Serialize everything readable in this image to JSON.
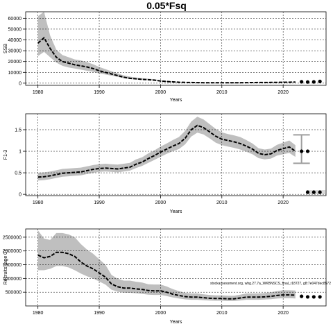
{
  "title": "0.05*Fsq",
  "watermark": "stockassessment.org, whg.27.7a_WKBNSCS_final_r18727, g8:7e047dec8572",
  "colors": {
    "band": "#bfbfbf",
    "line": "#000000",
    "grid": "#000000",
    "forecast_band": "#d9d9d9",
    "error_bar": "#9e9e9e"
  },
  "chart_data": [
    {
      "type": "line",
      "name": "ssb",
      "xlabel": "Years",
      "ylabel": "SSB",
      "xlim": [
        1978,
        2027
      ],
      "ylim": [
        -2000,
        66000
      ],
      "x_ticks": [
        1980,
        1990,
        2000,
        2010,
        2020
      ],
      "y_ticks": [
        0,
        10000,
        20000,
        30000,
        40000,
        50000,
        60000
      ],
      "grid": true,
      "x": [
        1980,
        1981,
        1982,
        1983,
        1984,
        1985,
        1986,
        1987,
        1988,
        1989,
        1990,
        1991,
        1992,
        1993,
        1994,
        1995,
        1996,
        1997,
        1998,
        1999,
        2000,
        2001,
        2002,
        2003,
        2004,
        2005,
        2006,
        2007,
        2008,
        2009,
        2010,
        2011,
        2012,
        2013,
        2014,
        2015,
        2016,
        2017,
        2018,
        2019,
        2020,
        2021,
        2022
      ],
      "estimate": [
        37000,
        42000,
        32000,
        24000,
        20000,
        18500,
        17000,
        16000,
        15000,
        13500,
        11500,
        10000,
        8500,
        7000,
        5500,
        4500,
        4000,
        3500,
        3200,
        2800,
        2000,
        1500,
        1200,
        900,
        700,
        600,
        500,
        450,
        400,
        380,
        370,
        380,
        400,
        450,
        500,
        550,
        600,
        650,
        700,
        780,
        850,
        900,
        1000
      ],
      "lower": [
        25000,
        29000,
        24000,
        19000,
        16000,
        14500,
        13500,
        12500,
        11500,
        10500,
        9000,
        8000,
        7000,
        5800,
        4600,
        3800,
        3400,
        3000,
        2700,
        2300,
        1600,
        1200,
        950,
        700,
        540,
        460,
        380,
        340,
        300,
        280,
        270,
        280,
        300,
        340,
        380,
        420,
        460,
        500,
        540,
        600,
        660,
        700,
        780
      ],
      "upper": [
        62000,
        66000,
        44000,
        31000,
        26000,
        24000,
        22000,
        21000,
        19500,
        17500,
        15000,
        13000,
        11000,
        9000,
        7200,
        6000,
        5200,
        4600,
        4100,
        3600,
        2700,
        2050,
        1650,
        1250,
        960,
        830,
        690,
        620,
        550,
        520,
        510,
        520,
        550,
        620,
        690,
        760,
        830,
        900,
        970,
        1080,
        1180,
        1250,
        1400
      ],
      "forecast": {
        "x": [
          2023,
          2024,
          2025,
          2026
        ],
        "values": [
          1300,
          1100,
          1200,
          1600
        ]
      }
    },
    {
      "type": "line",
      "name": "fishing-mortality",
      "xlabel": "Years",
      "ylabel": "F1-3",
      "xlim": [
        1978,
        2027
      ],
      "ylim": [
        -0.03,
        1.87
      ],
      "x_ticks": [
        1980,
        1990,
        2000,
        2010,
        2020
      ],
      "y_ticks": [
        0.0,
        0.5,
        1.0,
        1.5
      ],
      "grid": true,
      "x": [
        1980,
        1981,
        1982,
        1983,
        1984,
        1985,
        1986,
        1987,
        1988,
        1989,
        1990,
        1991,
        1992,
        1993,
        1994,
        1995,
        1996,
        1997,
        1998,
        1999,
        2000,
        2001,
        2002,
        2003,
        2004,
        2005,
        2006,
        2007,
        2008,
        2009,
        2010,
        2011,
        2012,
        2013,
        2014,
        2015,
        2016,
        2017,
        2018,
        2019,
        2020,
        2021,
        2022
      ],
      "estimate": [
        0.4,
        0.41,
        0.43,
        0.46,
        0.49,
        0.5,
        0.51,
        0.52,
        0.55,
        0.58,
        0.6,
        0.61,
        0.6,
        0.59,
        0.61,
        0.63,
        0.7,
        0.75,
        0.83,
        0.9,
        0.98,
        1.05,
        1.12,
        1.18,
        1.3,
        1.5,
        1.6,
        1.55,
        1.45,
        1.35,
        1.28,
        1.25,
        1.22,
        1.18,
        1.12,
        1.05,
        0.95,
        0.92,
        0.94,
        1.02,
        1.06,
        1.1,
        1.0
      ],
      "lower": [
        0.32,
        0.33,
        0.35,
        0.38,
        0.41,
        0.42,
        0.43,
        0.44,
        0.47,
        0.5,
        0.52,
        0.53,
        0.52,
        0.51,
        0.53,
        0.55,
        0.61,
        0.66,
        0.73,
        0.8,
        0.87,
        0.94,
        1.0,
        1.05,
        1.16,
        1.34,
        1.43,
        1.39,
        1.3,
        1.2,
        1.14,
        1.11,
        1.08,
        1.04,
        0.99,
        0.93,
        0.84,
        0.81,
        0.83,
        0.9,
        0.93,
        0.96,
        0.87
      ],
      "upper": [
        0.5,
        0.51,
        0.53,
        0.56,
        0.59,
        0.6,
        0.61,
        0.62,
        0.65,
        0.68,
        0.7,
        0.71,
        0.7,
        0.69,
        0.71,
        0.73,
        0.81,
        0.86,
        0.95,
        1.02,
        1.11,
        1.18,
        1.26,
        1.33,
        1.47,
        1.69,
        1.8,
        1.74,
        1.63,
        1.52,
        1.44,
        1.4,
        1.37,
        1.33,
        1.26,
        1.18,
        1.07,
        1.04,
        1.06,
        1.15,
        1.2,
        1.25,
        1.14
      ],
      "error_bar": {
        "x": 2023,
        "value": 1.0,
        "lower": 0.72,
        "upper": 1.38
      },
      "forecast": {
        "x": [
          2023,
          2024
        ],
        "values": [
          1.0,
          1.0
        ]
      },
      "forecast_low": {
        "x": [
          2024,
          2025,
          2026
        ],
        "values": [
          0.05,
          0.05,
          0.05
        ]
      }
    },
    {
      "type": "line",
      "name": "recruitment",
      "xlabel": "Years",
      "ylabel": "Recruits (age 0)",
      "xlim": [
        1978,
        2027
      ],
      "ylim": [
        0,
        2800000
      ],
      "x_ticks": [
        1980,
        1990,
        2000,
        2010,
        2020
      ],
      "y_ticks": [
        500000,
        1000000,
        1500000,
        2000000,
        2500000
      ],
      "grid": true,
      "x": [
        1980,
        1981,
        1982,
        1983,
        1984,
        1985,
        1986,
        1987,
        1988,
        1989,
        1990,
        1991,
        1992,
        1993,
        1994,
        1995,
        1996,
        1997,
        1998,
        1999,
        2000,
        2001,
        2002,
        2003,
        2004,
        2005,
        2006,
        2007,
        2008,
        2009,
        2010,
        2011,
        2012,
        2013,
        2014,
        2015,
        2016,
        2017,
        2018,
        2019,
        2020,
        2021,
        2022
      ],
      "estimate": [
        1850000,
        1750000,
        1800000,
        1950000,
        1950000,
        1900000,
        1800000,
        1600000,
        1450000,
        1350000,
        1200000,
        1050000,
        800000,
        700000,
        650000,
        650000,
        620000,
        600000,
        560000,
        550000,
        550000,
        500000,
        430000,
        380000,
        340000,
        320000,
        320000,
        300000,
        280000,
        270000,
        270000,
        260000,
        260000,
        290000,
        320000,
        320000,
        320000,
        330000,
        350000,
        380000,
        400000,
        400000,
        390000
      ],
      "lower": [
        1300000,
        1300000,
        1350000,
        1450000,
        1450000,
        1400000,
        1300000,
        1180000,
        1080000,
        1000000,
        890000,
        780000,
        590000,
        520000,
        480000,
        480000,
        460000,
        440000,
        410000,
        400000,
        400000,
        360000,
        310000,
        270000,
        240000,
        225000,
        225000,
        210000,
        195000,
        188000,
        188000,
        180000,
        180000,
        200000,
        225000,
        225000,
        225000,
        232000,
        246000,
        268000,
        282000,
        282000,
        270000
      ],
      "upper": [
        2750000,
        2450000,
        2400000,
        2650000,
        2650000,
        2600000,
        2500000,
        2250000,
        2050000,
        1900000,
        1700000,
        1500000,
        1130000,
        990000,
        920000,
        920000,
        880000,
        850000,
        790000,
        780000,
        780000,
        710000,
        610000,
        540000,
        480000,
        455000,
        455000,
        425000,
        400000,
        385000,
        385000,
        370000,
        370000,
        410000,
        455000,
        455000,
        455000,
        470000,
        497000,
        540000,
        570000,
        570000,
        560000
      ],
      "forecast": {
        "x": [
          2023,
          2024,
          2025,
          2026
        ],
        "values": [
          350000,
          330000,
          330000,
          330000
        ]
      }
    }
  ]
}
